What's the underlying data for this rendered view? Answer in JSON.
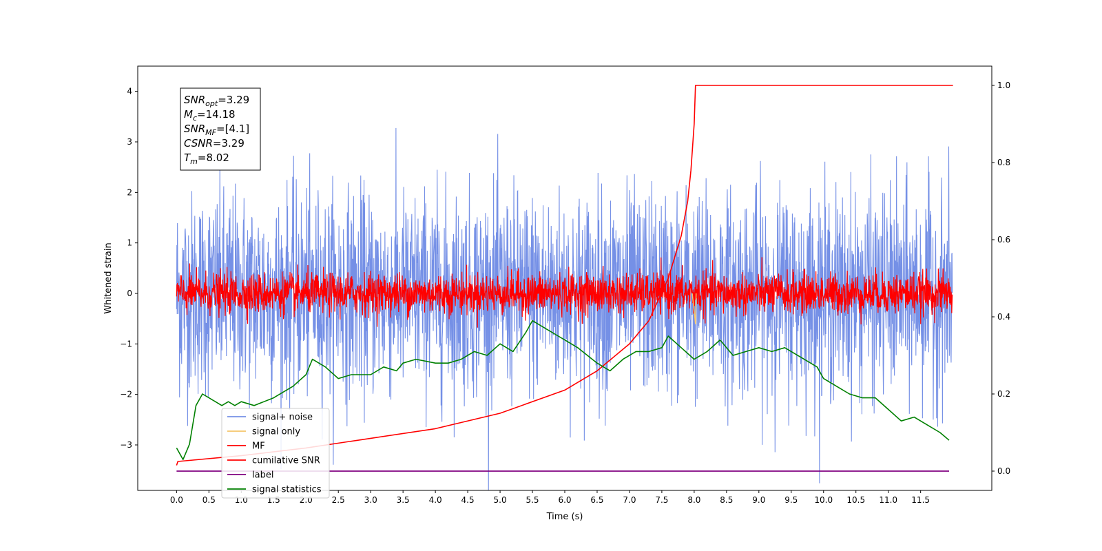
{
  "chart_data": {
    "type": "line",
    "xlabel": "Time (s)",
    "ylabel": "Whitened strain",
    "xlim": [
      -0.6,
      12.6
    ],
    "ylim": [
      -3.9,
      4.5
    ],
    "y2lim": [
      -0.05,
      1.05
    ],
    "x_ticks": [
      "0.0",
      "0.5",
      "1.0",
      "1.5",
      "2.0",
      "2.5",
      "3.0",
      "3.5",
      "4.0",
      "4.5",
      "5.0",
      "5.5",
      "6.0",
      "6.5",
      "7.0",
      "7.5",
      "8.0",
      "8.5",
      "9.0",
      "9.5",
      "10.0",
      "10.5",
      "11.0",
      "11.5"
    ],
    "y_ticks": [
      "−3",
      "−2",
      "−1",
      "0",
      "1",
      "2",
      "3",
      "4"
    ],
    "y2_ticks": [
      "0.0",
      "0.2",
      "0.4",
      "0.6",
      "0.8",
      "1.0"
    ],
    "grid": false,
    "legend_position": "lower-left",
    "legend": [
      {
        "label": "signal+ noise",
        "color": "#7590e6"
      },
      {
        "label": "signal only",
        "color": "#f5c56a"
      },
      {
        "label": "MF",
        "color": "#ff0000"
      },
      {
        "label": "cumilative SNR",
        "color": "#ff0000"
      },
      {
        "label": "label",
        "color": "#800080"
      },
      {
        "label": "signal statistics",
        "color": "#008000"
      }
    ],
    "annotation": {
      "lines": [
        {
          "base": "SNR",
          "sub": "opt",
          "value": "=3.29"
        },
        {
          "base": "M",
          "sub": "c",
          "value": "=14.18"
        },
        {
          "base": "SNR",
          "sub": "MF",
          "value": "=[4.1]"
        },
        {
          "base": "CSNR",
          "sub": "",
          "value": "=3.29"
        },
        {
          "base": "T",
          "sub": "m",
          "value": "=8.02"
        }
      ]
    },
    "series": [
      {
        "name": "signal+ noise",
        "axis": "left",
        "kind": "noise",
        "x_range": [
          0.0,
          11.99
        ],
        "mean": 0.0,
        "std": 1.0,
        "color": "#7590e6"
      },
      {
        "name": "MF",
        "axis": "left",
        "kind": "noise",
        "x_range": [
          0.0,
          11.99
        ],
        "mean": 0.0,
        "std": 0.2,
        "color": "#ff0000"
      },
      {
        "name": "signal only",
        "axis": "left",
        "x": [
          7.97,
          8.02,
          8.03
        ],
        "y": [
          0.0,
          -0.6,
          0.0
        ],
        "color": "#f5c56a"
      },
      {
        "name": "cumilative SNR",
        "axis": "right",
        "x": [
          0.0,
          0.02,
          1.0,
          2.0,
          3.0,
          4.0,
          5.0,
          6.0,
          6.5,
          7.0,
          7.3,
          7.6,
          7.8,
          7.9,
          7.95,
          8.0,
          8.02,
          12.0
        ],
        "y": [
          0.015,
          0.025,
          0.04,
          0.06,
          0.085,
          0.11,
          0.15,
          0.21,
          0.26,
          0.33,
          0.39,
          0.5,
          0.61,
          0.7,
          0.78,
          0.9,
          1.0,
          1.0
        ],
        "color": "#ff0000"
      },
      {
        "name": "label",
        "axis": "right",
        "x": [
          0.0,
          11.94
        ],
        "y": [
          0.0,
          0.0
        ],
        "color": "#800080"
      },
      {
        "name": "signal statistics",
        "axis": "right",
        "x": [
          0.0,
          0.1,
          0.2,
          0.3,
          0.4,
          0.5,
          0.6,
          0.7,
          0.8,
          0.9,
          1.0,
          1.2,
          1.5,
          1.8,
          2.0,
          2.1,
          2.3,
          2.5,
          2.7,
          3.0,
          3.2,
          3.4,
          3.5,
          3.7,
          4.0,
          4.2,
          4.4,
          4.6,
          4.8,
          5.0,
          5.2,
          5.4,
          5.5,
          5.7,
          5.9,
          6.0,
          6.2,
          6.5,
          6.7,
          6.9,
          7.1,
          7.3,
          7.5,
          7.6,
          7.8,
          8.0,
          8.2,
          8.4,
          8.6,
          8.8,
          9.0,
          9.2,
          9.4,
          9.5,
          9.7,
          9.9,
          10.0,
          10.2,
          10.4,
          10.6,
          10.8,
          11.0,
          11.2,
          11.4,
          11.6,
          11.8,
          11.94
        ],
        "y": [
          0.06,
          0.03,
          0.07,
          0.17,
          0.2,
          0.19,
          0.18,
          0.17,
          0.18,
          0.17,
          0.18,
          0.17,
          0.19,
          0.22,
          0.25,
          0.29,
          0.27,
          0.24,
          0.25,
          0.25,
          0.27,
          0.26,
          0.28,
          0.29,
          0.28,
          0.28,
          0.29,
          0.31,
          0.3,
          0.33,
          0.31,
          0.36,
          0.39,
          0.37,
          0.35,
          0.34,
          0.32,
          0.28,
          0.26,
          0.29,
          0.31,
          0.31,
          0.32,
          0.35,
          0.32,
          0.29,
          0.31,
          0.34,
          0.3,
          0.31,
          0.32,
          0.31,
          0.32,
          0.31,
          0.29,
          0.27,
          0.24,
          0.22,
          0.2,
          0.19,
          0.19,
          0.16,
          0.13,
          0.14,
          0.12,
          0.1,
          0.08
        ],
        "color": "#008000"
      }
    ]
  }
}
